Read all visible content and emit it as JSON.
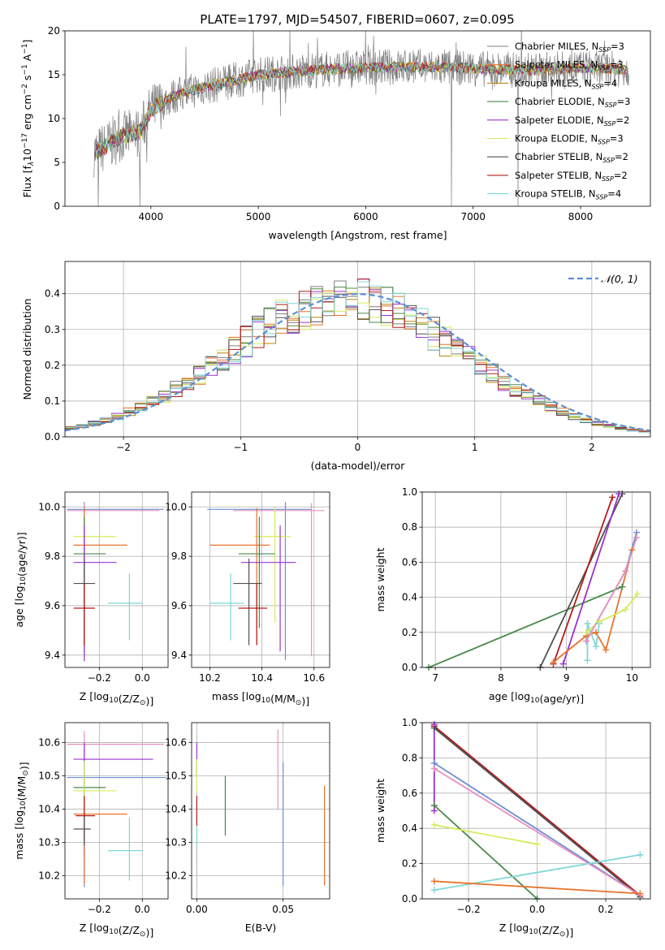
{
  "title": "PLATE=1797, MJD=54507, FIBERID=0607, z=0.095",
  "models": [
    {
      "name": "Chabrier MILES",
      "nssp": "3",
      "color": "#7f7f7f"
    },
    {
      "name": "Salpeter MILES",
      "nssp": "3",
      "color": "#e6732b"
    },
    {
      "name": "Kroupa MILES",
      "nssp": "4",
      "color": "#b8860b"
    },
    {
      "name": "Chabrier ELODIE",
      "nssp": "3",
      "color": "#4a8a4a"
    },
    {
      "name": "Salpeter ELODIE",
      "nssp": "2",
      "color": "#9a32cd"
    },
    {
      "name": "Kroupa ELODIE",
      "nssp": "3",
      "color": "#d4ec5a"
    },
    {
      "name": "Chabrier STELIB",
      "nssp": "2",
      "color": "#505050"
    },
    {
      "name": "Salpeter STELIB",
      "nssp": "2",
      "color": "#b31b1b"
    },
    {
      "name": "Kroupa STELIB",
      "nssp": "4",
      "color": "#7ed7d7"
    }
  ],
  "chart_data": [
    {
      "id": "spectrum",
      "type": "line",
      "xlabel": "wavelength [Angstrom, rest frame]",
      "ylabel_parts": [
        "Flux [f",
        "λ",
        "10",
        "−17",
        " erg cm",
        "−2",
        " s",
        "−1",
        " A",
        "−1",
        "]"
      ],
      "xlim": [
        3200,
        8650
      ],
      "ylim": [
        0,
        20
      ],
      "xticks": [
        4000,
        5000,
        6000,
        7000,
        8000
      ],
      "yticks": [
        0,
        5,
        10,
        15,
        20
      ],
      "legend_position": "right",
      "continuum_x": [
        3500,
        3700,
        3900,
        4000,
        4200,
        4500,
        4800,
        5000,
        5300,
        5600,
        6000,
        6400,
        6800,
        7200,
        7600,
        8000,
        8400
      ],
      "continuum_y": [
        6.2,
        7.8,
        8.5,
        11.0,
        12.5,
        13.6,
        14.4,
        15.0,
        15.3,
        15.6,
        15.8,
        15.9,
        15.8,
        15.6,
        15.5,
        15.8,
        15.6
      ],
      "spikes_to_zero": [
        3510,
        3900,
        6800,
        7420
      ]
    },
    {
      "id": "residuals",
      "type": "histogram",
      "xlabel": "(data-model)/error",
      "ylabel": "Normed distribution",
      "xlim": [
        -2.5,
        2.5
      ],
      "ylim": [
        0,
        0.49
      ],
      "xticks": [
        -2,
        -1,
        0,
        1,
        2
      ],
      "yticks": [
        0.0,
        0.1,
        0.2,
        0.3,
        0.4
      ],
      "grid": true,
      "legend_position": "top-right",
      "reference_curve": "𝒩(0, 1)",
      "bin_width": 0.1
    },
    {
      "id": "age-vs-Z",
      "type": "errorbar",
      "xlabel": "Z [log10(Z/Z⊙)]",
      "ylabel": "age  [log10(age/yr)]",
      "xlim": [
        -0.36,
        0.12
      ],
      "ylim": [
        9.35,
        10.06
      ],
      "xticks": [
        -0.2,
        0.0
      ],
      "yticks": [
        9.4,
        9.6,
        9.8,
        10.0
      ],
      "grid": true,
      "points": [
        {
          "x": -0.27,
          "y": 9.99,
          "xerr": [
            0.08,
            0.37
          ],
          "yerr": [
            0.59,
            0.03
          ],
          "color": "#6b8fd6"
        },
        {
          "x": -0.27,
          "y": 9.985,
          "xerr": [
            0.08,
            0.35
          ],
          "yerr": [
            0.55,
            0.03
          ],
          "color": "#e88fc0"
        },
        {
          "x": -0.27,
          "y": 9.88,
          "xerr": [
            0.05,
            0.15
          ],
          "yerr": [
            0.4,
            0.1
          ],
          "color": "#d4ec5a"
        },
        {
          "x": -0.27,
          "y": 9.845,
          "xerr": [
            0.05,
            0.2
          ],
          "yerr": [
            0.4,
            0.15
          ],
          "color": "#e6732b"
        },
        {
          "x": -0.27,
          "y": 9.81,
          "xerr": [
            0.05,
            0.1
          ],
          "yerr": [
            0.35,
            0.15
          ],
          "color": "#4a8a4a"
        },
        {
          "x": -0.27,
          "y": 9.775,
          "xerr": [
            0.05,
            0.15
          ],
          "yerr": [
            0.4,
            0.15
          ],
          "color": "#9a32cd"
        },
        {
          "x": -0.27,
          "y": 9.69,
          "xerr": [
            0.05,
            0.05
          ],
          "yerr": [
            0.25,
            0.1
          ],
          "color": "#505050"
        },
        {
          "x": -0.27,
          "y": 9.59,
          "xerr": [
            0.05,
            0.05
          ],
          "yerr": [
            0.15,
            0.1
          ],
          "color": "#b31b1b"
        },
        {
          "x": -0.06,
          "y": 9.61,
          "xerr": [
            0.1,
            0.06
          ],
          "yerr": [
            0.15,
            0.12
          ],
          "color": "#7ed7d7"
        }
      ]
    },
    {
      "id": "age-vs-mass",
      "type": "errorbar",
      "xlabel": "mass [log10(M/M⊙)]",
      "ylabel": "",
      "xlim": [
        10.13,
        10.66
      ],
      "ylim": [
        9.35,
        10.06
      ],
      "xticks": [
        10.2,
        10.4,
        10.6
      ],
      "yticks": [
        9.4,
        9.6,
        9.8,
        10.0
      ],
      "grid": true,
      "points": [
        {
          "x": 10.49,
          "y": 9.99,
          "xerr": [
            0.3,
            0.1
          ],
          "yerr": [
            0.61,
            0.03
          ],
          "color": "#6b8fd6"
        },
        {
          "x": 10.59,
          "y": 9.985,
          "xerr": [
            0.3,
            0.05
          ],
          "yerr": [
            0.59,
            0.03
          ],
          "color": "#e88fc0"
        },
        {
          "x": 10.45,
          "y": 9.88,
          "xerr": [
            0.08,
            0.06
          ],
          "yerr": [
            0.35,
            0.12
          ],
          "color": "#d4ec5a"
        },
        {
          "x": 10.38,
          "y": 9.845,
          "xerr": [
            0.18,
            0.05
          ],
          "yerr": [
            0.4,
            0.15
          ],
          "color": "#e6732b"
        },
        {
          "x": 10.39,
          "y": 9.81,
          "xerr": [
            0.08,
            0.06
          ],
          "yerr": [
            0.3,
            0.15
          ],
          "color": "#4a8a4a"
        },
        {
          "x": 10.47,
          "y": 9.775,
          "xerr": [
            0.15,
            0.06
          ],
          "yerr": [
            0.36,
            0.15
          ],
          "color": "#9a32cd"
        },
        {
          "x": 10.35,
          "y": 9.69,
          "xerr": [
            0.06,
            0.05
          ],
          "yerr": [
            0.25,
            0.1
          ],
          "color": "#505050"
        },
        {
          "x": 10.38,
          "y": 9.59,
          "xerr": [
            0.07,
            0.04
          ],
          "yerr": [
            0.15,
            0.1
          ],
          "color": "#b31b1b"
        },
        {
          "x": 10.28,
          "y": 9.61,
          "xerr": [
            0.08,
            0.05
          ],
          "yerr": [
            0.15,
            0.12
          ],
          "color": "#7ed7d7"
        }
      ]
    },
    {
      "id": "weight-vs-age",
      "type": "line",
      "xlabel": "age  [log10(age/yr)]",
      "ylabel": "mass weight",
      "xlim": [
        6.8,
        10.28
      ],
      "ylim": [
        0,
        1.0
      ],
      "xticks": [
        7,
        8,
        9,
        10
      ],
      "yticks": [
        0.0,
        0.2,
        0.4,
        0.6,
        0.8,
        1.0
      ],
      "grid": true,
      "series": [
        {
          "color": "#4a8a4a",
          "x": [
            6.9,
            9.85
          ],
          "y": [
            0.0,
            0.46
          ]
        },
        {
          "color": "#505050",
          "x": [
            8.6,
            9.85
          ],
          "y": [
            0.0,
            0.99
          ]
        },
        {
          "color": "#b31b1b",
          "x": [
            8.8,
            9.7
          ],
          "y": [
            0.02,
            0.97
          ]
        },
        {
          "color": "#9a32cd",
          "x": [
            8.95,
            9.8
          ],
          "y": [
            0.02,
            0.99
          ]
        },
        {
          "color": "#e6732b",
          "x": [
            8.8,
            9.3,
            9.45,
            9.6,
            10.0
          ],
          "y": [
            0.03,
            0.18,
            0.2,
            0.1,
            0.67
          ]
        },
        {
          "color": "#7ed7d7",
          "x": [
            9.32,
            9.32,
            9.45,
            9.5
          ],
          "y": [
            0.04,
            0.25,
            0.12,
            0.25
          ]
        },
        {
          "color": "#d4ec5a",
          "x": [
            9.3,
            9.5,
            9.9,
            10.08
          ],
          "y": [
            0.2,
            0.26,
            0.33,
            0.42
          ]
        },
        {
          "color": "#6b8fd6",
          "x": [
            9.3,
            9.9,
            10.07
          ],
          "y": [
            0.15,
            0.55,
            0.77
          ]
        },
        {
          "color": "#e88fc0",
          "x": [
            9.3,
            9.9,
            10.07
          ],
          "y": [
            0.15,
            0.55,
            0.74
          ]
        }
      ]
    },
    {
      "id": "mass-vs-Z",
      "type": "errorbar",
      "xlabel": "Z [log10(Z/Z⊙)]",
      "ylabel": "mass [log10(M/M⊙)]",
      "xlim": [
        -0.36,
        0.12
      ],
      "ylim": [
        10.13,
        10.66
      ],
      "xticks": [
        -0.2,
        0.0
      ],
      "yticks": [
        10.2,
        10.3,
        10.4,
        10.5,
        10.6
      ],
      "grid": true,
      "points": [
        {
          "x": -0.27,
          "y": 10.595,
          "xerr": [
            0.08,
            0.37
          ],
          "yerr": [
            0.3,
            0.04
          ],
          "color": "#e88fc0"
        },
        {
          "x": -0.27,
          "y": 10.55,
          "xerr": [
            0.05,
            0.32
          ],
          "yerr": [
            0.3,
            0.05
          ],
          "color": "#9a32cd"
        },
        {
          "x": -0.27,
          "y": 10.495,
          "xerr": [
            0.08,
            0.38
          ],
          "yerr": [
            0.33,
            0.05
          ],
          "color": "#6b8fd6"
        },
        {
          "x": -0.27,
          "y": 10.465,
          "xerr": [
            0.05,
            0.1
          ],
          "yerr": [
            0.12,
            0.04
          ],
          "color": "#4a8a4a"
        },
        {
          "x": -0.27,
          "y": 10.455,
          "xerr": [
            0.05,
            0.15
          ],
          "yerr": [
            0.12,
            0.09
          ],
          "color": "#d4ec5a"
        },
        {
          "x": -0.27,
          "y": 10.385,
          "xerr": [
            0.05,
            0.2
          ],
          "yerr": [
            0.21,
            0.05
          ],
          "color": "#e6732b"
        },
        {
          "x": -0.27,
          "y": 10.38,
          "xerr": [
            0.04,
            0.05
          ],
          "yerr": [
            0.07,
            0.06
          ],
          "color": "#b31b1b"
        },
        {
          "x": -0.27,
          "y": 10.34,
          "xerr": [
            0.05,
            0.03
          ],
          "yerr": [
            0.05,
            0.04
          ],
          "color": "#505050"
        },
        {
          "x": -0.06,
          "y": 10.275,
          "xerr": [
            0.1,
            0.06
          ],
          "yerr": [
            0.09,
            0.1
          ],
          "color": "#7ed7d7"
        }
      ]
    },
    {
      "id": "mass-vs-EBV",
      "type": "errorbar",
      "xlabel": "E(B-V)",
      "ylabel": "",
      "xlim": [
        -0.003,
        0.077
      ],
      "ylim": [
        10.13,
        10.66
      ],
      "xticks": [
        0.0,
        0.05
      ],
      "yticks": [
        10.2,
        10.3,
        10.4,
        10.5,
        10.6
      ],
      "grid": true,
      "points": [
        {
          "x": 0.0,
          "y": 10.55,
          "xerr": [
            0,
            0
          ],
          "yerr": [
            0.05,
            0.05
          ],
          "color": "#9a32cd"
        },
        {
          "x": 0.0,
          "y": 10.5,
          "xerr": [
            0,
            0
          ],
          "yerr": [
            0.05,
            0.05
          ],
          "color": "#d4ec5a"
        },
        {
          "x": 0.0,
          "y": 10.4,
          "xerr": [
            0,
            0
          ],
          "yerr": [
            0.05,
            0.04
          ],
          "color": "#b31b1b"
        },
        {
          "x": 0.0,
          "y": 10.3,
          "xerr": [
            0,
            0
          ],
          "yerr": [
            0.06,
            0.05
          ],
          "color": "#7ed7d7"
        },
        {
          "x": 0.0,
          "y": 10.26,
          "xerr": [
            0,
            0
          ],
          "yerr": [
            0.08,
            0.03
          ],
          "color": "#bfbfbf"
        },
        {
          "x": 0.0165,
          "y": 10.41,
          "xerr": [
            0,
            0
          ],
          "yerr": [
            0.09,
            0.09
          ],
          "color": "#4a8a4a"
        },
        {
          "x": 0.047,
          "y": 10.5,
          "xerr": [
            0,
            0
          ],
          "yerr": [
            0.1,
            0.14
          ],
          "color": "#e88fc0"
        },
        {
          "x": 0.05,
          "y": 10.37,
          "xerr": [
            0,
            0
          ],
          "yerr": [
            0.2,
            0.17
          ],
          "color": "#6b8fd6"
        },
        {
          "x": 0.074,
          "y": 10.32,
          "xerr": [
            0,
            0
          ],
          "yerr": [
            0.15,
            0.15
          ],
          "color": "#e6732b"
        }
      ]
    },
    {
      "id": "weight-vs-Z",
      "type": "line",
      "xlabel": "Z [log10(Z/Z⊙)]",
      "ylabel": "mass weight",
      "xlim": [
        -0.335,
        0.33
      ],
      "ylim": [
        0,
        1.0
      ],
      "xticks": [
        -0.2,
        0.0,
        0.2
      ],
      "yticks": [
        0.0,
        0.2,
        0.4,
        0.6,
        0.8,
        1.0
      ],
      "grid": true,
      "series": [
        {
          "color": "#b31b1b",
          "x": [
            -0.3,
            0.3
          ],
          "y": [
            0.98,
            0.02
          ]
        },
        {
          "color": "#505050",
          "x": [
            -0.3,
            0.3
          ],
          "y": [
            0.97,
            0.01
          ]
        },
        {
          "color": "#6b8fd6",
          "x": [
            -0.3,
            0.3
          ],
          "y": [
            0.77,
            0.02
          ]
        },
        {
          "color": "#e88fc0",
          "x": [
            -0.3,
            0.3
          ],
          "y": [
            0.74,
            0.02
          ]
        },
        {
          "color": "#4a8a4a",
          "x": [
            -0.3,
            0.0
          ],
          "y": [
            0.53,
            0.0
          ]
        },
        {
          "color": "#d4ec5a",
          "x": [
            -0.3,
            0.0
          ],
          "y": [
            0.42,
            0.31
          ]
        },
        {
          "color": "#7ed7d7",
          "x": [
            -0.3,
            0.3
          ],
          "y": [
            0.05,
            0.25
          ]
        },
        {
          "color": "#e6732b",
          "x": [
            -0.3,
            0.3
          ],
          "y": [
            0.1,
            0.03
          ]
        },
        {
          "color": "#9a32cd",
          "x": [
            -0.3,
            -0.3
          ],
          "y": [
            0.99,
            0.5
          ]
        }
      ]
    }
  ]
}
